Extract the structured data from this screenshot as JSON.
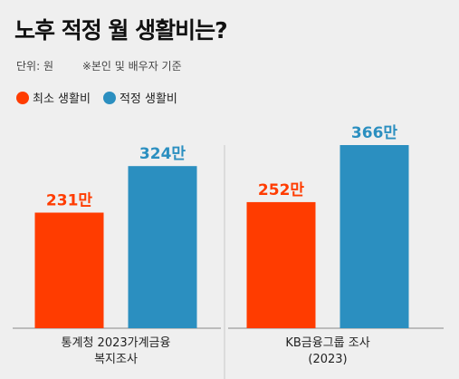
{
  "title": "노후 적정 월 생활비는?",
  "unit_label": "단위: 원",
  "note": "※본인 및 배우자 기준",
  "colors": {
    "min": "#ff3c00",
    "adequate": "#2b8fc0",
    "background": "#efefef"
  },
  "chart_data": {
    "type": "bar",
    "legend_position": "top-left",
    "categories": [
      {
        "lines": [
          "통계청 2023가계금융",
          "복지조사"
        ]
      },
      {
        "lines": [
          "KB금융그룹 조사",
          "(2023)"
        ]
      }
    ],
    "series": [
      {
        "name": "최소 생활비",
        "color": "#ff3c00",
        "values": [
          231,
          252
        ],
        "labels": [
          "231만",
          "252만"
        ]
      },
      {
        "name": "적정 생활비",
        "color": "#2b8fc0",
        "values": [
          324,
          366
        ],
        "labels": [
          "324만",
          "366만"
        ]
      }
    ],
    "value_unit": "만원",
    "ylim": [
      0,
      366
    ],
    "grid": false
  }
}
